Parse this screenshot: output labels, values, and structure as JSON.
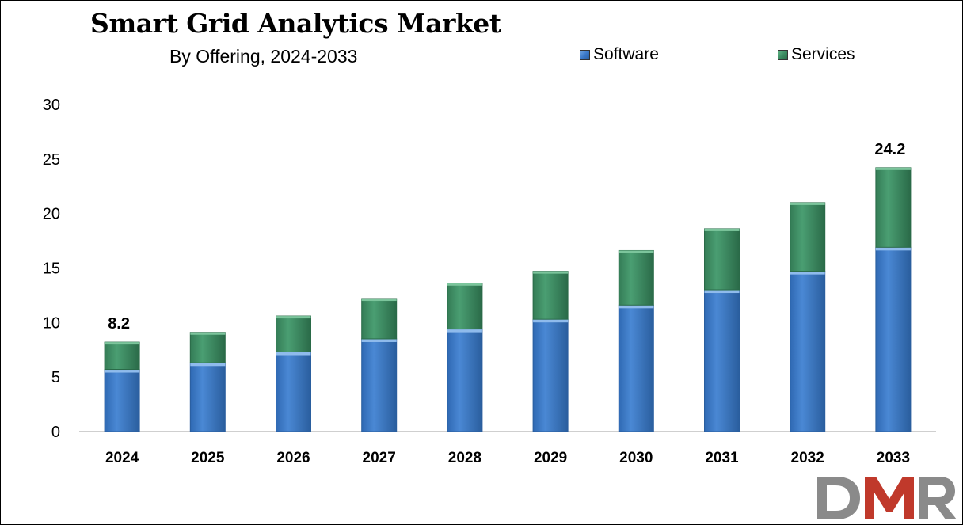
{
  "header": {
    "title": "Smart Grid Analytics Market",
    "subtitle": "By Offering, 2024-2033"
  },
  "legend": {
    "software": "Software",
    "services": "Services"
  },
  "colors": {
    "software": "#3a78c8",
    "software_dark": "#2a5e9e",
    "software_light": "#6fa3e0",
    "services": "#3b8c61",
    "services_dark": "#2a6a48",
    "services_light": "#62b587",
    "logo_gray": "#8a8a8a",
    "logo_red": "#c0392b"
  },
  "logo": {
    "text": "DMR"
  },
  "chart_data": {
    "type": "bar",
    "stacked": true,
    "categories": [
      "2024",
      "2025",
      "2026",
      "2027",
      "2028",
      "2029",
      "2030",
      "2031",
      "2032",
      "2033"
    ],
    "series": [
      {
        "name": "Software",
        "values": [
          5.7,
          6.3,
          7.3,
          8.5,
          9.4,
          10.3,
          11.6,
          13.0,
          14.7,
          16.9
        ]
      },
      {
        "name": "Services",
        "values": [
          2.5,
          2.8,
          3.3,
          3.7,
          4.2,
          4.4,
          5.0,
          5.6,
          6.3,
          7.3
        ]
      }
    ],
    "totals_labels": {
      "2024": "8.2",
      "2033": "24.2"
    },
    "ylim": [
      0,
      30
    ],
    "yticks": [
      0,
      5,
      10,
      15,
      20,
      25,
      30
    ],
    "grid": false,
    "legend_position": "top-right"
  }
}
